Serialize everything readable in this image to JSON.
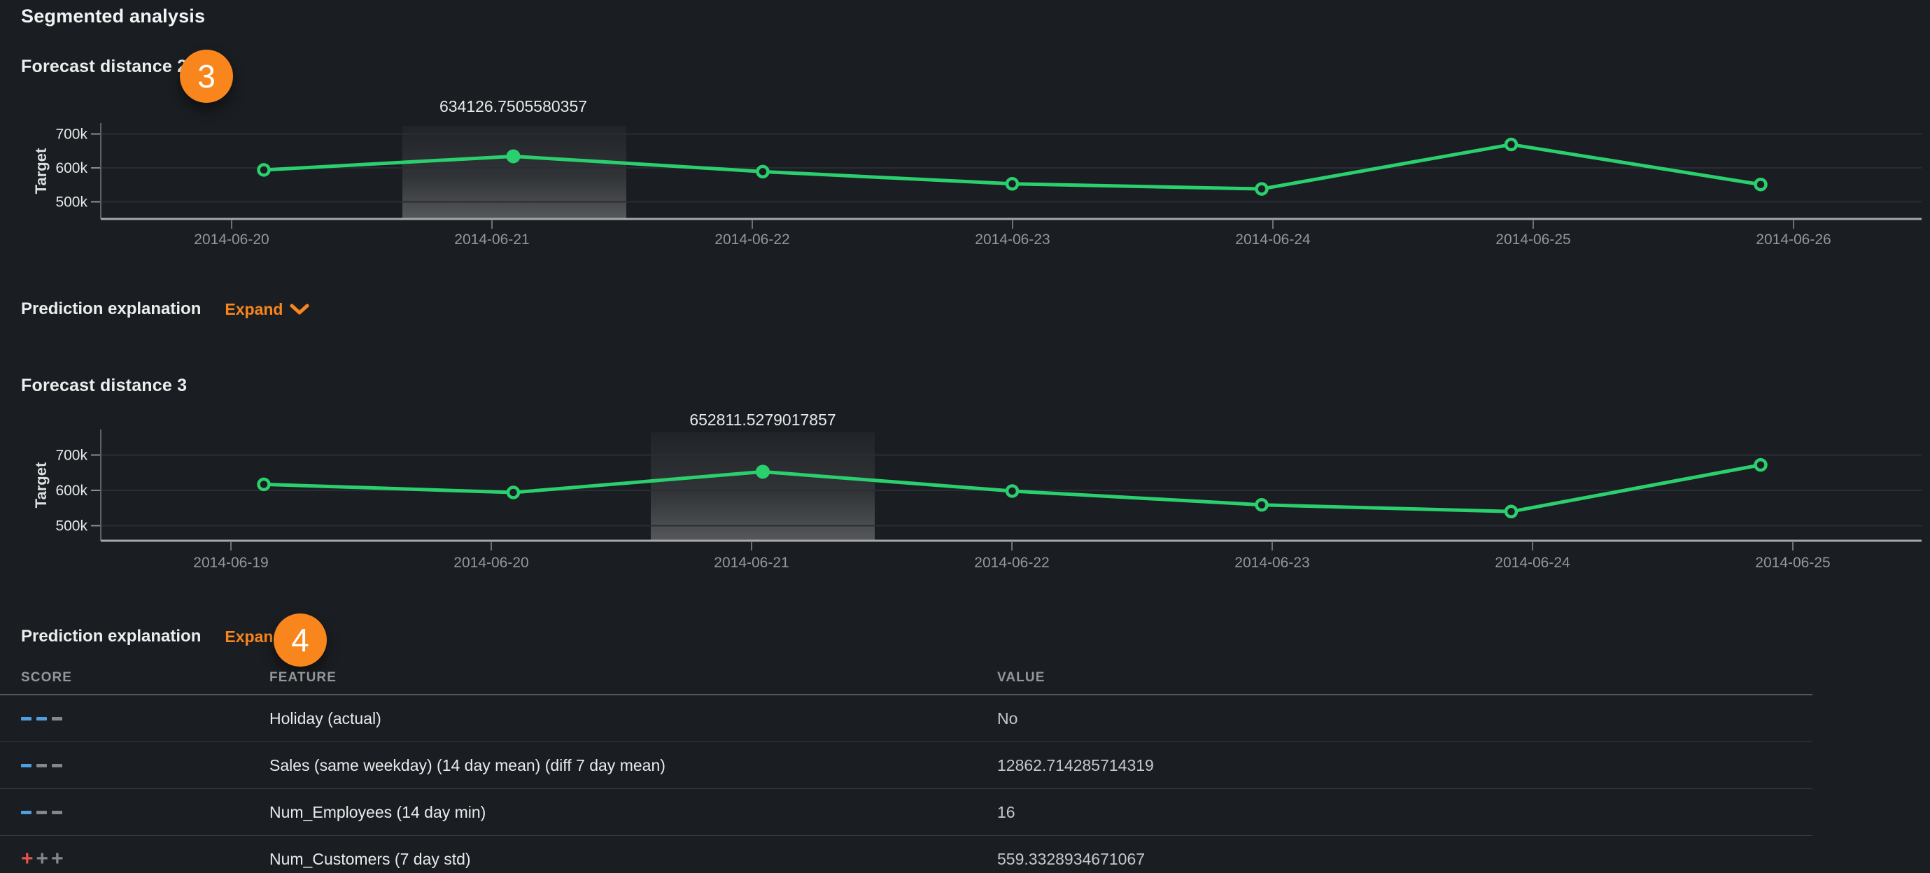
{
  "title": "Segmented analysis",
  "colors": {
    "background": "#1a1d21",
    "accent_orange": "#f8861d",
    "line_green": "#2bd06e",
    "score_blue": "#4d9fdd",
    "score_red": "#de544c",
    "score_gray": "#85888b"
  },
  "section1": {
    "heading": "Forecast distance 2",
    "badge": "3"
  },
  "prediction_explanation_1": {
    "label": "Prediction explanation",
    "expand_label": "Expand",
    "chevron": "down"
  },
  "section2": {
    "heading": "Forecast distance 3",
    "badge": "4"
  },
  "prediction_explanation_2": {
    "label": "Prediction explanation",
    "expand_label": "Expand",
    "chevron": "right"
  },
  "table": {
    "headers": [
      "SCORE",
      "FEATURE",
      "VALUE"
    ],
    "rows": [
      {
        "score": [
          {
            "type": "dash",
            "color": "#4d9fdd"
          },
          {
            "type": "dash",
            "color": "#4d9fdd"
          },
          {
            "type": "dash",
            "color": "#85888b"
          }
        ],
        "score_text": "---",
        "feature": "Holiday (actual)",
        "value": "No"
      },
      {
        "score": [
          {
            "type": "dash",
            "color": "#4d9fdd"
          },
          {
            "type": "dash",
            "color": "#85888b"
          },
          {
            "type": "dash",
            "color": "#85888b"
          }
        ],
        "score_text": "---",
        "feature": "Sales (same weekday) (14 day mean) (diff 7 day mean)",
        "value": "12862.714285714319"
      },
      {
        "score": [
          {
            "type": "dash",
            "color": "#4d9fdd"
          },
          {
            "type": "dash",
            "color": "#85888b"
          },
          {
            "type": "dash",
            "color": "#85888b"
          }
        ],
        "score_text": "---",
        "feature": "Num_Employees (14 day min)",
        "value": "16"
      },
      {
        "score": [
          {
            "type": "plus",
            "color": "#de544c"
          },
          {
            "type": "plus",
            "color": "#85888b"
          },
          {
            "type": "plus",
            "color": "#85888b"
          }
        ],
        "score_text": "+++",
        "feature": "Num_Customers (7 day std)",
        "value": "559.3328934671067"
      }
    ]
  },
  "chart_data": [
    {
      "type": "line",
      "title": "Forecast distance 2",
      "ylabel": "Target",
      "yticks": [
        {
          "label": "700k",
          "value": 700000
        },
        {
          "label": "600k",
          "value": 600000
        },
        {
          "label": "500k",
          "value": 500000
        }
      ],
      "ylim": [
        450000,
        732000
      ],
      "x": [
        "2014-06-20",
        "2014-06-21",
        "2014-06-22",
        "2014-06-23",
        "2014-06-24",
        "2014-06-25",
        "2014-06-26"
      ],
      "values": [
        594000,
        634126.7505580357,
        589000,
        553000,
        538000,
        669000,
        551000
      ],
      "highlighted_index": 1,
      "annotation": "634126.7505580357",
      "annotation_date": "2014-06-21",
      "grid": true,
      "legend": "none",
      "line_color": "#2bd06e"
    },
    {
      "type": "line",
      "title": "Forecast distance 3",
      "ylabel": "Target",
      "yticks": [
        {
          "label": "700k",
          "value": 700000
        },
        {
          "label": "600k",
          "value": 600000
        },
        {
          "label": "500k",
          "value": 500000
        }
      ],
      "ylim": [
        457000,
        772000
      ],
      "x": [
        "2014-06-19",
        "2014-06-20",
        "2014-06-21",
        "2014-06-22",
        "2014-06-23",
        "2014-06-24",
        "2014-06-25"
      ],
      "values": [
        617000,
        594000,
        652811.5279017857,
        598000,
        559000,
        540000,
        672000
      ],
      "highlighted_index": 2,
      "annotation": "652811.5279017857",
      "annotation_date": "2014-06-21",
      "grid": true,
      "legend": "none",
      "line_color": "#2bd06e"
    }
  ]
}
